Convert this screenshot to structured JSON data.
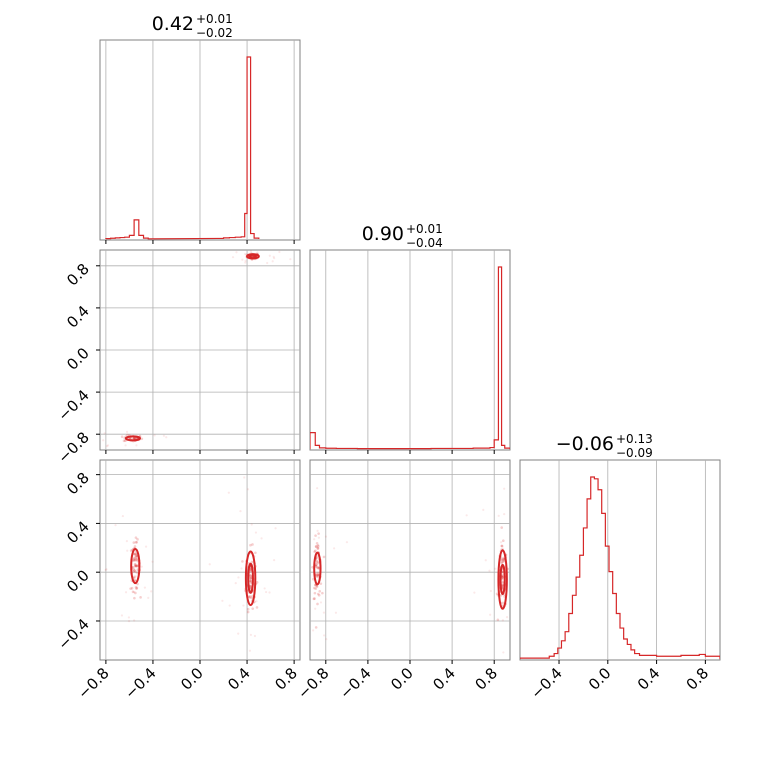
{
  "chart_data": {
    "type": "corner",
    "colors": {
      "primary": "#d62728",
      "frame": "#808080",
      "grid": "#b0b0b0"
    },
    "grid": true,
    "params": [
      {
        "title": {
          "value": "0.42",
          "plus": "+0.01",
          "minus": "−0.02"
        },
        "range": [
          -0.85,
          0.85
        ],
        "ticks": [
          {
            "v": -0.8,
            "label": "−0.8"
          },
          {
            "v": -0.4,
            "label": "−0.4"
          },
          {
            "v": 0.0,
            "label": "0.0"
          },
          {
            "v": 0.4,
            "label": "0.4"
          },
          {
            "v": 0.8,
            "label": "0.8"
          }
        ]
      },
      {
        "title": {
          "value": "0.90",
          "plus": "+0.01",
          "minus": "−0.04"
        },
        "range": [
          -0.95,
          0.95
        ],
        "ticks": [
          {
            "v": -0.8,
            "label": "−0.8"
          },
          {
            "v": -0.4,
            "label": "−0.4"
          },
          {
            "v": 0.0,
            "label": "0.0"
          },
          {
            "v": 0.4,
            "label": "0.4"
          },
          {
            "v": 0.8,
            "label": "0.8"
          }
        ]
      },
      {
        "title": {
          "value": "−0.06",
          "plus": "+0.13",
          "minus": "−0.09"
        },
        "range": [
          -0.72,
          0.92
        ],
        "ticks": [
          {
            "v": -0.4,
            "label": "−0.4"
          },
          {
            "v": 0.0,
            "label": "0.0"
          },
          {
            "v": 0.4,
            "label": "0.4"
          },
          {
            "v": 0.8,
            "label": "0.8"
          }
        ]
      }
    ],
    "histograms": [
      {
        "param": 0,
        "bins": [
          [
            -0.8,
            -0.76,
            0.002
          ],
          [
            -0.76,
            -0.72,
            0.004
          ],
          [
            -0.72,
            -0.68,
            0.006
          ],
          [
            -0.68,
            -0.64,
            0.008
          ],
          [
            -0.64,
            -0.6,
            0.01
          ],
          [
            -0.6,
            -0.56,
            0.02
          ],
          [
            -0.56,
            -0.52,
            0.105
          ],
          [
            -0.52,
            -0.48,
            0.02
          ],
          [
            -0.48,
            -0.44,
            0.005
          ],
          [
            -0.44,
            -0.4,
            0.001
          ],
          [
            0.15,
            0.2,
            0.003
          ],
          [
            0.2,
            0.25,
            0.006
          ],
          [
            0.25,
            0.3,
            0.008
          ],
          [
            0.3,
            0.35,
            0.01
          ],
          [
            0.35,
            0.38,
            0.012
          ],
          [
            0.38,
            0.4,
            0.14
          ],
          [
            0.4,
            0.43,
            1.0
          ],
          [
            0.43,
            0.46,
            0.03
          ],
          [
            0.46,
            0.5,
            0.005
          ]
        ]
      },
      {
        "param": 1,
        "bins": [
          [
            -0.95,
            -0.9,
            0.09
          ],
          [
            -0.9,
            -0.86,
            0.02
          ],
          [
            -0.86,
            -0.8,
            0.006
          ],
          [
            -0.8,
            -0.7,
            0.004
          ],
          [
            -0.7,
            -0.5,
            0.003
          ],
          [
            -0.5,
            0.2,
            0.002
          ],
          [
            0.2,
            0.6,
            0.003
          ],
          [
            0.6,
            0.76,
            0.005
          ],
          [
            0.76,
            0.8,
            0.008
          ],
          [
            0.8,
            0.84,
            0.05
          ],
          [
            0.84,
            0.87,
            1.0
          ],
          [
            0.87,
            0.9,
            0.02
          ],
          [
            0.9,
            0.95,
            0.005
          ]
        ]
      },
      {
        "param": 2,
        "bins": [
          [
            -0.72,
            -0.48,
            0.005
          ],
          [
            -0.48,
            -0.44,
            0.015
          ],
          [
            -0.44,
            -0.41,
            0.03
          ],
          [
            -0.41,
            -0.38,
            0.06
          ],
          [
            -0.38,
            -0.35,
            0.1
          ],
          [
            -0.35,
            -0.32,
            0.15
          ],
          [
            -0.32,
            -0.29,
            0.25
          ],
          [
            -0.29,
            -0.26,
            0.35
          ],
          [
            -0.26,
            -0.23,
            0.45
          ],
          [
            -0.23,
            -0.2,
            0.57
          ],
          [
            -0.2,
            -0.17,
            0.72
          ],
          [
            -0.17,
            -0.14,
            0.88
          ],
          [
            -0.14,
            -0.11,
            1.0
          ],
          [
            -0.11,
            -0.08,
            0.99
          ],
          [
            -0.08,
            -0.05,
            0.93
          ],
          [
            -0.05,
            -0.02,
            0.8
          ],
          [
            -0.02,
            0.01,
            0.62
          ],
          [
            0.01,
            0.04,
            0.48
          ],
          [
            0.04,
            0.07,
            0.36
          ],
          [
            0.07,
            0.1,
            0.25
          ],
          [
            0.1,
            0.13,
            0.17
          ],
          [
            0.13,
            0.16,
            0.11
          ],
          [
            0.16,
            0.19,
            0.08
          ],
          [
            0.19,
            0.22,
            0.05
          ],
          [
            0.22,
            0.26,
            0.03
          ],
          [
            0.26,
            0.4,
            0.02
          ],
          [
            0.4,
            0.6,
            0.015
          ],
          [
            0.6,
            0.75,
            0.02
          ],
          [
            0.75,
            0.8,
            0.025
          ],
          [
            0.8,
            0.92,
            0.015
          ]
        ]
      }
    ],
    "pairs": [
      {
        "x_param": 0,
        "y_param": 1,
        "clusters": [
          {
            "x": 0.45,
            "y": 0.89,
            "sx": 0.025,
            "sy": 0.012,
            "n": 70
          },
          {
            "x": -0.57,
            "y": -0.84,
            "sx": 0.04,
            "sy": 0.015,
            "n": 45
          }
        ],
        "contours": [
          {
            "x": 0.45,
            "y": 0.89,
            "rx": 0.05,
            "ry": 0.02
          },
          {
            "x": 0.45,
            "y": 0.89,
            "rx": 0.025,
            "ry": 0.01
          },
          {
            "x": -0.57,
            "y": -0.84,
            "rx": 0.06,
            "ry": 0.018
          }
        ]
      },
      {
        "x_param": 0,
        "y_param": 2,
        "clusters": [
          {
            "x": 0.43,
            "y": -0.05,
            "sx": 0.02,
            "sy": 0.12,
            "n": 90
          },
          {
            "x": -0.55,
            "y": 0.05,
            "sx": 0.02,
            "sy": 0.1,
            "n": 70
          }
        ],
        "contours": [
          {
            "x": 0.43,
            "y": -0.05,
            "rx": 0.04,
            "ry": 0.22
          },
          {
            "x": 0.43,
            "y": -0.05,
            "rx": 0.02,
            "ry": 0.12
          },
          {
            "x": -0.55,
            "y": 0.05,
            "rx": 0.035,
            "ry": 0.14
          }
        ]
      },
      {
        "x_param": 1,
        "y_param": 2,
        "clusters": [
          {
            "x": 0.88,
            "y": -0.06,
            "sx": 0.02,
            "sy": 0.13,
            "n": 90
          },
          {
            "x": -0.88,
            "y": 0.03,
            "sx": 0.02,
            "sy": 0.12,
            "n": 70
          }
        ],
        "contours": [
          {
            "x": 0.88,
            "y": -0.06,
            "rx": 0.04,
            "ry": 0.24
          },
          {
            "x": 0.88,
            "y": -0.06,
            "rx": 0.02,
            "ry": 0.12
          },
          {
            "x": -0.88,
            "y": 0.03,
            "rx": 0.03,
            "ry": 0.13
          }
        ]
      }
    ]
  }
}
